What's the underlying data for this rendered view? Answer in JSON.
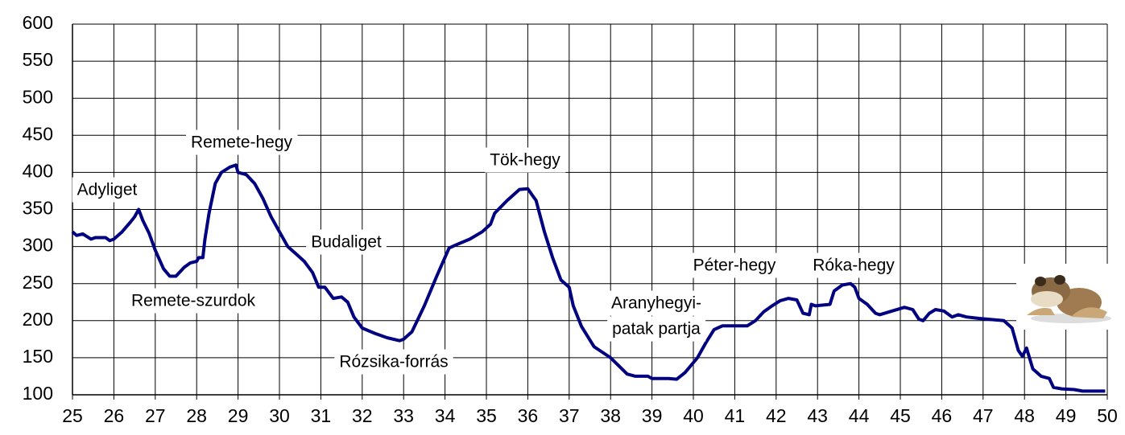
{
  "chart_data": {
    "type": "line",
    "x": [
      25,
      25.1,
      25.25,
      25.45,
      25.55,
      25.8,
      25.9,
      26.0,
      26.2,
      26.4,
      26.5,
      26.6,
      26.7,
      26.85,
      27.0,
      27.2,
      27.35,
      27.5,
      27.7,
      27.85,
      28.0,
      28.05,
      28.15,
      28.2,
      28.3,
      28.45,
      28.6,
      28.8,
      28.95,
      29.0,
      29.2,
      29.4,
      29.6,
      29.8,
      30.0,
      30.2,
      30.4,
      30.6,
      30.8,
      30.95,
      31.1,
      31.3,
      31.5,
      31.65,
      31.8,
      32.0,
      32.3,
      32.6,
      32.9,
      33.0,
      33.2,
      33.5,
      33.8,
      34.1,
      34.3,
      34.6,
      34.9,
      35.1,
      35.2,
      35.5,
      35.8,
      36.0,
      36.1,
      36.2,
      36.4,
      36.6,
      36.8,
      37.0,
      37.1,
      37.3,
      37.6,
      38.0,
      38.4,
      38.6,
      38.9,
      39.0,
      39.4,
      39.6,
      39.8,
      40.1,
      40.3,
      40.5,
      40.7,
      41.3,
      41.5,
      41.7,
      41.9,
      42.1,
      42.3,
      42.5,
      42.65,
      42.8,
      42.85,
      42.95,
      43.3,
      43.4,
      43.6,
      43.8,
      43.9,
      44.0,
      44.2,
      44.4,
      44.5,
      44.8,
      45.1,
      45.3,
      45.45,
      45.55,
      45.7,
      45.85,
      46.05,
      46.25,
      46.4,
      46.6,
      46.9,
      47.5,
      47.7,
      47.85,
      47.95,
      48.05,
      48.2,
      48.4,
      48.6,
      48.7,
      48.9,
      49.2,
      49.4,
      49.95
    ],
    "values": [
      320,
      315,
      317,
      310,
      312,
      312,
      308,
      310,
      320,
      333,
      340,
      350,
      335,
      318,
      295,
      270,
      260,
      260,
      272,
      278,
      280,
      285,
      285,
      310,
      345,
      385,
      400,
      407,
      410,
      400,
      397,
      385,
      365,
      340,
      320,
      300,
      290,
      280,
      265,
      245,
      245,
      230,
      232,
      225,
      205,
      190,
      183,
      177,
      173,
      175,
      185,
      220,
      260,
      298,
      303,
      310,
      320,
      330,
      345,
      362,
      377,
      378,
      370,
      362,
      320,
      285,
      255,
      245,
      220,
      192,
      165,
      150,
      128,
      125,
      125,
      122,
      122,
      121,
      130,
      150,
      170,
      188,
      193,
      193,
      200,
      212,
      220,
      227,
      230,
      228,
      210,
      208,
      222,
      220,
      222,
      240,
      248,
      250,
      245,
      230,
      222,
      210,
      208,
      213,
      218,
      215,
      202,
      200,
      210,
      215,
      213,
      205,
      208,
      205,
      203,
      200,
      190,
      160,
      152,
      163,
      135,
      125,
      122,
      110,
      108,
      107,
      105,
      105
    ],
    "color": "#000080",
    "xlim": [
      25,
      50
    ],
    "xticks": [
      25,
      26,
      27,
      28,
      29,
      30,
      31,
      32,
      33,
      34,
      35,
      36,
      37,
      38,
      39,
      40,
      41,
      42,
      43,
      44,
      45,
      46,
      47,
      48,
      49,
      50
    ],
    "ylim": [
      100,
      600
    ],
    "yticks": [
      100,
      150,
      200,
      250,
      300,
      350,
      400,
      450,
      500,
      550,
      600
    ],
    "grid": true,
    "annotations": [
      "Adyliget",
      "Remete-hegy",
      "Remete-szurdok",
      "Budaliget",
      "Rózsika-forrás",
      "Tök-hegy",
      "Aranyhegyi-",
      "patak partja",
      "Péter-hegy",
      "Róka-hegy"
    ]
  }
}
